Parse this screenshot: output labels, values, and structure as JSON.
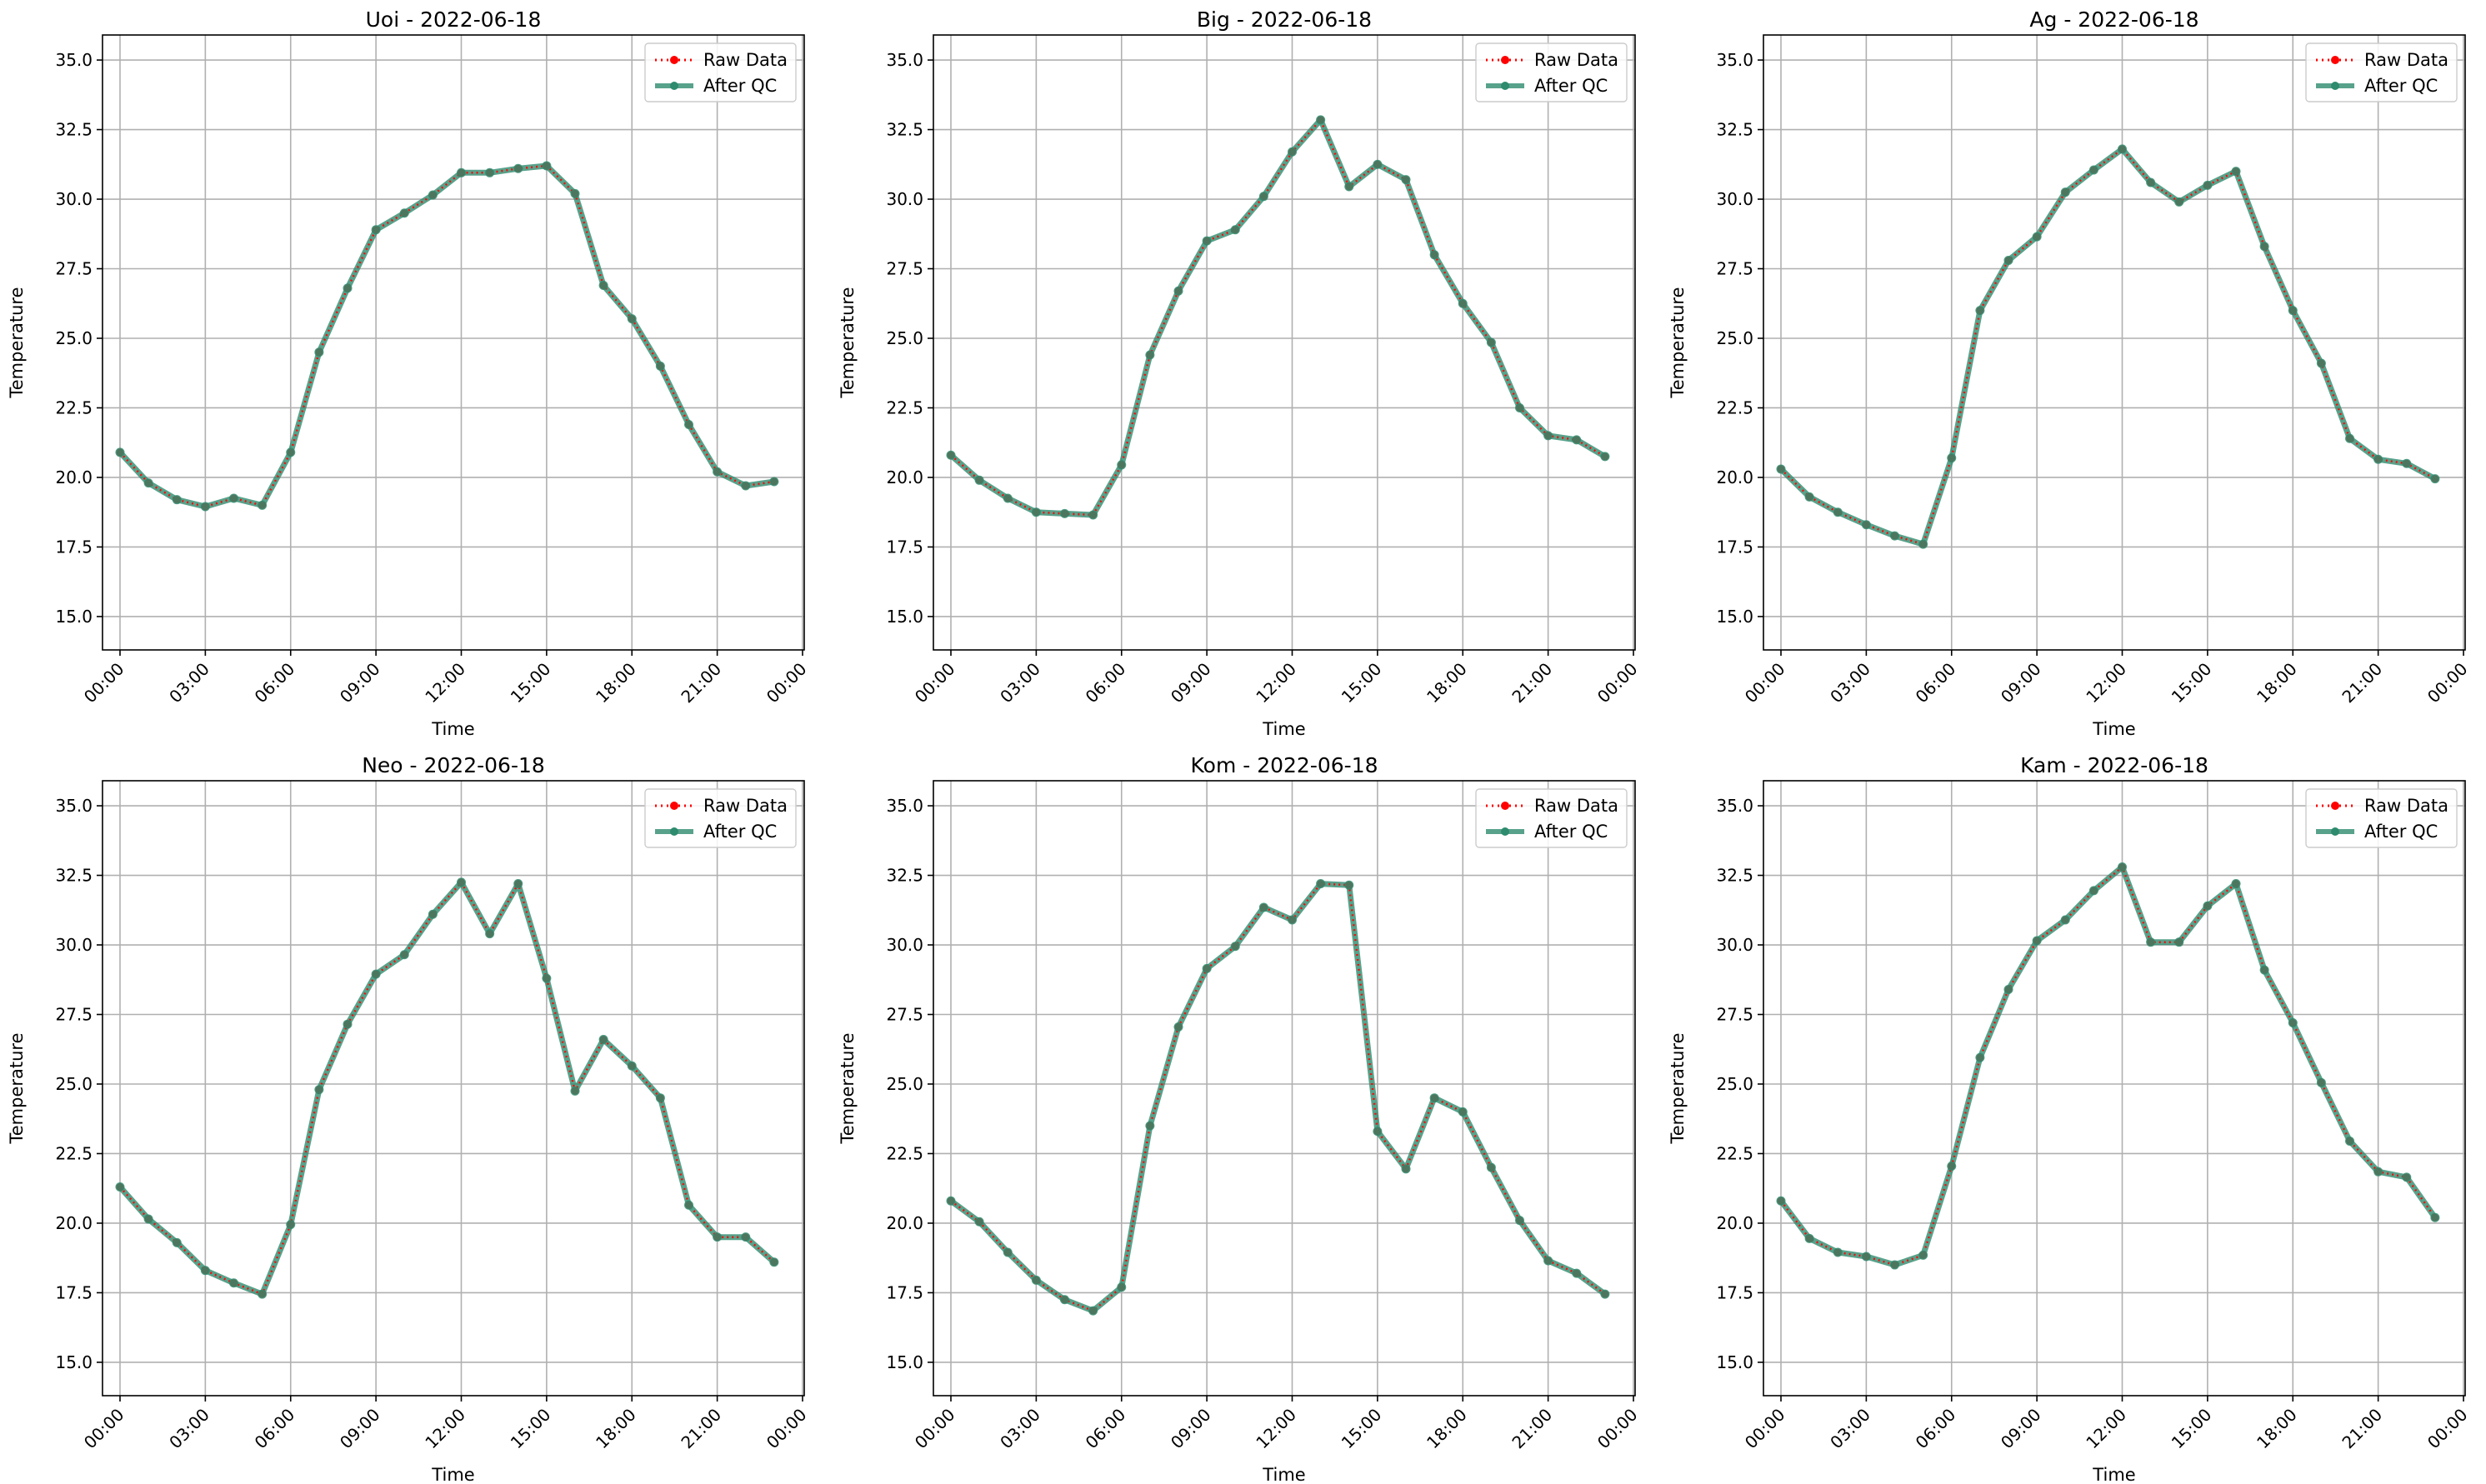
{
  "chart_data": [
    {
      "type": "line",
      "title": "Uoi - 2022-06-18",
      "xlabel": "Time",
      "ylabel": "Temperature",
      "ylim": [
        13.8,
        35.9
      ],
      "yticks": [
        "15.0",
        "17.5",
        "20.0",
        "22.5",
        "25.0",
        "27.5",
        "30.0",
        "32.5",
        "35.0"
      ],
      "xticks": [
        "00:00",
        "03:00",
        "06:00",
        "09:00",
        "12:00",
        "15:00",
        "18:00",
        "21:00",
        "00:00"
      ],
      "x_hours": [
        0,
        1,
        2,
        3,
        4,
        5,
        6,
        7,
        8,
        9,
        10,
        11,
        12,
        13,
        14,
        15,
        16,
        17,
        18,
        19,
        20,
        21,
        22,
        23
      ],
      "grid": true,
      "legend_position": "upper right",
      "series": [
        {
          "name": "Raw Data",
          "values": [
            20.9,
            19.8,
            19.2,
            18.95,
            19.25,
            19.0,
            20.9,
            24.5,
            26.8,
            28.9,
            29.5,
            30.15,
            30.95,
            30.95,
            31.1,
            31.2,
            30.2,
            26.9,
            25.7,
            24.0,
            21.9,
            20.2,
            19.7,
            19.85
          ]
        },
        {
          "name": "After QC",
          "values": [
            20.9,
            19.8,
            19.2,
            18.95,
            19.25,
            19.0,
            20.9,
            24.5,
            26.8,
            28.9,
            29.5,
            30.15,
            30.95,
            30.95,
            31.1,
            31.2,
            30.2,
            26.9,
            25.7,
            24.0,
            21.9,
            20.2,
            19.7,
            19.85
          ]
        }
      ]
    },
    {
      "type": "line",
      "title": "Big - 2022-06-18",
      "xlabel": "Time",
      "ylabel": "Temperature",
      "ylim": [
        13.8,
        35.9
      ],
      "yticks": [
        "15.0",
        "17.5",
        "20.0",
        "22.5",
        "25.0",
        "27.5",
        "30.0",
        "32.5",
        "35.0"
      ],
      "xticks": [
        "00:00",
        "03:00",
        "06:00",
        "09:00",
        "12:00",
        "15:00",
        "18:00",
        "21:00",
        "00:00"
      ],
      "x_hours": [
        0,
        1,
        2,
        3,
        4,
        5,
        6,
        7,
        8,
        9,
        10,
        11,
        12,
        13,
        14,
        15,
        16,
        17,
        18,
        19,
        20,
        21,
        22,
        23
      ],
      "grid": true,
      "legend_position": "upper right",
      "series": [
        {
          "name": "Raw Data",
          "values": [
            20.8,
            19.9,
            19.25,
            18.75,
            18.7,
            18.65,
            20.45,
            24.4,
            26.7,
            28.5,
            28.9,
            30.1,
            31.7,
            32.85,
            30.45,
            31.25,
            30.7,
            28.0,
            26.25,
            24.85,
            22.5,
            21.5,
            21.35,
            20.75
          ]
        },
        {
          "name": "After QC",
          "values": [
            20.8,
            19.9,
            19.25,
            18.75,
            18.7,
            18.65,
            20.45,
            24.4,
            26.7,
            28.5,
            28.9,
            30.1,
            31.7,
            32.85,
            30.45,
            31.25,
            30.7,
            28.0,
            26.25,
            24.85,
            22.5,
            21.5,
            21.35,
            20.75
          ]
        }
      ]
    },
    {
      "type": "line",
      "title": "Ag - 2022-06-18",
      "xlabel": "Time",
      "ylabel": "Temperature",
      "ylim": [
        13.8,
        35.9
      ],
      "yticks": [
        "15.0",
        "17.5",
        "20.0",
        "22.5",
        "25.0",
        "27.5",
        "30.0",
        "32.5",
        "35.0"
      ],
      "xticks": [
        "00:00",
        "03:00",
        "06:00",
        "09:00",
        "12:00",
        "15:00",
        "18:00",
        "21:00",
        "00:00"
      ],
      "x_hours": [
        0,
        1,
        2,
        3,
        4,
        5,
        6,
        7,
        8,
        9,
        10,
        11,
        12,
        13,
        14,
        15,
        16,
        17,
        18,
        19,
        20,
        21,
        22,
        23
      ],
      "grid": true,
      "legend_position": "upper right",
      "series": [
        {
          "name": "Raw Data",
          "values": [
            20.3,
            19.3,
            18.75,
            18.3,
            17.9,
            17.6,
            20.7,
            26.0,
            27.8,
            28.65,
            30.25,
            31.05,
            31.8,
            30.6,
            29.9,
            30.5,
            31.0,
            28.3,
            26.0,
            24.1,
            21.4,
            20.65,
            20.5,
            19.95
          ]
        },
        {
          "name": "After QC",
          "values": [
            20.3,
            19.3,
            18.75,
            18.3,
            17.9,
            17.6,
            20.7,
            26.0,
            27.8,
            28.65,
            30.25,
            31.05,
            31.8,
            30.6,
            29.9,
            30.5,
            31.0,
            28.3,
            26.0,
            24.1,
            21.4,
            20.65,
            20.5,
            19.95
          ]
        }
      ]
    },
    {
      "type": "line",
      "title": "Neo - 2022-06-18",
      "xlabel": "Time",
      "ylabel": "Temperature",
      "ylim": [
        13.8,
        35.9
      ],
      "yticks": [
        "15.0",
        "17.5",
        "20.0",
        "22.5",
        "25.0",
        "27.5",
        "30.0",
        "32.5",
        "35.0"
      ],
      "xticks": [
        "00:00",
        "03:00",
        "06:00",
        "09:00",
        "12:00",
        "15:00",
        "18:00",
        "21:00",
        "00:00"
      ],
      "x_hours": [
        0,
        1,
        2,
        3,
        4,
        5,
        6,
        7,
        8,
        9,
        10,
        11,
        12,
        13,
        14,
        15,
        16,
        17,
        18,
        19,
        20,
        21,
        22,
        23
      ],
      "grid": true,
      "legend_position": "upper right",
      "series": [
        {
          "name": "Raw Data",
          "values": [
            21.3,
            20.15,
            19.3,
            18.3,
            17.85,
            17.45,
            19.95,
            24.8,
            27.15,
            28.95,
            29.65,
            31.1,
            32.25,
            30.4,
            32.2,
            28.8,
            24.75,
            26.6,
            25.65,
            24.5,
            20.65,
            19.5,
            19.5,
            18.6
          ]
        },
        {
          "name": "After QC",
          "values": [
            21.3,
            20.15,
            19.3,
            18.3,
            17.85,
            17.45,
            19.95,
            24.8,
            27.15,
            28.95,
            29.65,
            31.1,
            32.25,
            30.4,
            32.2,
            28.8,
            24.75,
            26.6,
            25.65,
            24.5,
            20.65,
            19.5,
            19.5,
            18.6
          ]
        }
      ]
    },
    {
      "type": "line",
      "title": "Kom - 2022-06-18",
      "xlabel": "Time",
      "ylabel": "Temperature",
      "ylim": [
        13.8,
        35.9
      ],
      "yticks": [
        "15.0",
        "17.5",
        "20.0",
        "22.5",
        "25.0",
        "27.5",
        "30.0",
        "32.5",
        "35.0"
      ],
      "xticks": [
        "00:00",
        "03:00",
        "06:00",
        "09:00",
        "12:00",
        "15:00",
        "18:00",
        "21:00",
        "00:00"
      ],
      "x_hours": [
        0,
        1,
        2,
        3,
        4,
        5,
        6,
        7,
        8,
        9,
        10,
        11,
        12,
        13,
        14,
        15,
        16,
        17,
        18,
        19,
        20,
        21,
        22,
        23
      ],
      "grid": true,
      "legend_position": "upper right",
      "series": [
        {
          "name": "Raw Data",
          "values": [
            20.8,
            20.05,
            18.95,
            17.95,
            17.25,
            16.85,
            17.7,
            23.5,
            27.05,
            29.15,
            29.95,
            31.35,
            30.9,
            32.2,
            32.15,
            23.3,
            21.95,
            24.5,
            24.0,
            22.0,
            20.1,
            18.65,
            18.2,
            17.45
          ]
        },
        {
          "name": "After QC",
          "values": [
            20.8,
            20.05,
            18.95,
            17.95,
            17.25,
            16.85,
            17.7,
            23.5,
            27.05,
            29.15,
            29.95,
            31.35,
            30.9,
            32.2,
            32.15,
            23.3,
            21.95,
            24.5,
            24.0,
            22.0,
            20.1,
            18.65,
            18.2,
            17.45
          ]
        }
      ]
    },
    {
      "type": "line",
      "title": "Kam - 2022-06-18",
      "xlabel": "Time",
      "ylabel": "Temperature",
      "ylim": [
        13.8,
        35.9
      ],
      "yticks": [
        "15.0",
        "17.5",
        "20.0",
        "22.5",
        "25.0",
        "27.5",
        "30.0",
        "32.5",
        "35.0"
      ],
      "xticks": [
        "00:00",
        "03:00",
        "06:00",
        "09:00",
        "12:00",
        "15:00",
        "18:00",
        "21:00",
        "00:00"
      ],
      "x_hours": [
        0,
        1,
        2,
        3,
        4,
        5,
        6,
        7,
        8,
        9,
        10,
        11,
        12,
        13,
        14,
        15,
        16,
        17,
        18,
        19,
        20,
        21,
        22,
        23
      ],
      "grid": true,
      "legend_position": "upper right",
      "series": [
        {
          "name": "Raw Data",
          "values": [
            20.8,
            19.45,
            18.95,
            18.8,
            18.5,
            18.85,
            22.05,
            25.95,
            28.4,
            30.15,
            30.9,
            31.95,
            32.8,
            30.1,
            30.1,
            31.4,
            32.2,
            29.1,
            27.2,
            25.05,
            22.95,
            21.85,
            21.65,
            20.2
          ]
        },
        {
          "name": "After QC",
          "values": [
            20.8,
            19.45,
            18.95,
            18.8,
            18.5,
            18.85,
            22.05,
            25.95,
            28.4,
            30.15,
            30.9,
            31.95,
            32.8,
            30.1,
            30.1,
            31.4,
            32.2,
            29.1,
            27.2,
            25.05,
            22.95,
            21.85,
            21.65,
            20.2
          ]
        }
      ]
    }
  ],
  "colors": {
    "raw": "#ff0000",
    "qc": "#2e8b6e",
    "grid": "#b0b0b0",
    "axes": "#000000"
  }
}
